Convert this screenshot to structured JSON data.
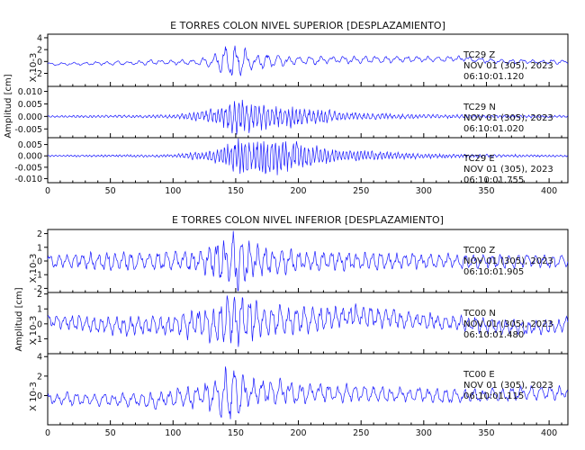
{
  "colors": {
    "trace": "#1a1aff",
    "axis": "#000000",
    "background": "#ffffff"
  },
  "chart_data": [
    {
      "type": "line",
      "title": "E TORRES COLON NIVEL SUPERIOR [DESPLAZAMIENTO]",
      "ylabel": "Amplitud [cm]",
      "xlim": [
        0,
        415
      ],
      "xticks": [
        "0",
        "50",
        "100",
        "150",
        "200",
        "250",
        "300",
        "350",
        "400"
      ],
      "panels": [
        {
          "station": "TC29",
          "component": "Z",
          "date": "NOV 01 (305), 2023",
          "time": "06:10:01.120",
          "scale_label": "X 10-3",
          "ylim": [
            -4.2,
            4.6
          ],
          "ytick_labels": [
            "4",
            "2",
            "0",
            "-2"
          ],
          "ytick_values": [
            4,
            2,
            0,
            -2
          ],
          "envelope": [
            [
              0,
              0.25
            ],
            [
              60,
              0.35
            ],
            [
              120,
              0.5
            ],
            [
              135,
              1.4
            ],
            [
              148,
              3.5
            ],
            [
              160,
              1.6
            ],
            [
              200,
              0.7
            ],
            [
              300,
              0.5
            ],
            [
              415,
              0.35
            ]
          ],
          "drift": [
            [
              0,
              -0.45
            ],
            [
              150,
              0
            ],
            [
              260,
              0.3
            ],
            [
              330,
              0.45
            ],
            [
              360,
              0
            ],
            [
              415,
              -0.1
            ]
          ],
          "freq": 0.35,
          "seed": 11
        },
        {
          "station": "TC29",
          "component": "N",
          "date": "NOV 01 (305), 2023",
          "time": "06:10:01.020",
          "scale_label": "",
          "ylim": [
            -0.0085,
            0.012
          ],
          "ytick_labels": [
            "0.010",
            "0.005",
            "0.000",
            "-0.005"
          ],
          "ytick_values": [
            0.01,
            0.005,
            0,
            -0.005
          ],
          "envelope": [
            [
              0,
              0.0004
            ],
            [
              100,
              0.0007
            ],
            [
              135,
              0.003
            ],
            [
              148,
              0.0075
            ],
            [
              175,
              0.005
            ],
            [
              205,
              0.004
            ],
            [
              240,
              0.0015
            ],
            [
              300,
              0.0008
            ],
            [
              415,
              0.0004
            ]
          ],
          "drift": [
            [
              0,
              0
            ],
            [
              415,
              0
            ]
          ],
          "freq": 0.9,
          "seed": 23
        },
        {
          "station": "TC29",
          "component": "E",
          "date": "NOV 01 (305), 2023",
          "time": "06:10:01.755",
          "scale_label": "",
          "ylim": [
            -0.0118,
            0.008
          ],
          "ytick_labels": [
            "0.005",
            "0.000",
            "-0.005",
            "-0.010"
          ],
          "ytick_values": [
            0.005,
            0,
            -0.005,
            -0.01
          ],
          "envelope": [
            [
              0,
              0.0004
            ],
            [
              100,
              0.0006
            ],
            [
              135,
              0.003
            ],
            [
              150,
              0.008
            ],
            [
              175,
              0.0085
            ],
            [
              200,
              0.006
            ],
            [
              230,
              0.003
            ],
            [
              300,
              0.001
            ],
            [
              415,
              0.0004
            ]
          ],
          "drift": [
            [
              0,
              0
            ],
            [
              415,
              0
            ]
          ],
          "freq": 1.0,
          "seed": 37
        }
      ]
    },
    {
      "type": "line",
      "title": "E TORRES COLON NIVEL INFERIOR [DESPLAZAMIENTO]",
      "ylabel": "Amplitud [cm]",
      "xlim": [
        0,
        415
      ],
      "xticks": [
        "0",
        "50",
        "100",
        "150",
        "200",
        "250",
        "300",
        "350",
        "400"
      ],
      "panels": [
        {
          "station": "TC00",
          "component": "Z",
          "date": "NOV 01 (305), 2023",
          "time": "06:10:01.905",
          "scale_label": "X 10-3",
          "ylim": [
            -2.3,
            2.3
          ],
          "ytick_labels": [
            "2",
            "1",
            "0",
            "-1",
            "-2"
          ],
          "ytick_values": [
            2,
            1,
            0,
            -1,
            -2
          ],
          "envelope": [
            [
              0,
              0.5
            ],
            [
              60,
              0.7
            ],
            [
              120,
              0.8
            ],
            [
              140,
              1.6
            ],
            [
              150,
              2.2
            ],
            [
              170,
              1.2
            ],
            [
              200,
              0.8
            ],
            [
              300,
              0.6
            ],
            [
              415,
              0.5
            ]
          ],
          "drift": [
            [
              0,
              0
            ],
            [
              415,
              0
            ]
          ],
          "freq": 0.45,
          "seed": 53
        },
        {
          "station": "TC00",
          "component": "N",
          "date": "NOV 01 (305), 2023",
          "time": "06:10:01.480",
          "scale_label": "X 10-3",
          "ylim": [
            -2.0,
            2.1
          ],
          "ytick_labels": [
            "2",
            "1",
            "0",
            "-1"
          ],
          "ytick_values": [
            2,
            1,
            0,
            -1
          ],
          "envelope": [
            [
              0,
              0.5
            ],
            [
              100,
              0.7
            ],
            [
              130,
              1.2
            ],
            [
              148,
              2.0
            ],
            [
              170,
              1.1
            ],
            [
              230,
              0.8
            ],
            [
              300,
              0.6
            ],
            [
              415,
              0.5
            ]
          ],
          "drift": [
            [
              0,
              0.2
            ],
            [
              60,
              -0.2
            ],
            [
              150,
              0.1
            ],
            [
              250,
              0.5
            ],
            [
              330,
              0
            ],
            [
              390,
              -0.3
            ],
            [
              415,
              0
            ]
          ],
          "freq": 0.5,
          "seed": 71
        },
        {
          "station": "TC00",
          "component": "E",
          "date": "NOV 01 (305), 2023",
          "time": "06:10:01.115",
          "scale_label": "X 10-3",
          "ylim": [
            -3.0,
            4.3
          ],
          "ytick_labels": [
            "4",
            "2",
            "0"
          ],
          "ytick_values": [
            4,
            2,
            0
          ],
          "envelope": [
            [
              0,
              0.6
            ],
            [
              100,
              0.9
            ],
            [
              135,
              1.8
            ],
            [
              145,
              3.5
            ],
            [
              160,
              1.5
            ],
            [
              210,
              1.0
            ],
            [
              300,
              0.8
            ],
            [
              415,
              0.7
            ]
          ],
          "drift": [
            [
              0,
              -0.3
            ],
            [
              80,
              -0.5
            ],
            [
              150,
              0.3
            ],
            [
              250,
              0.2
            ],
            [
              330,
              -0.1
            ],
            [
              415,
              0.4
            ]
          ],
          "freq": 0.4,
          "seed": 89
        }
      ]
    }
  ]
}
